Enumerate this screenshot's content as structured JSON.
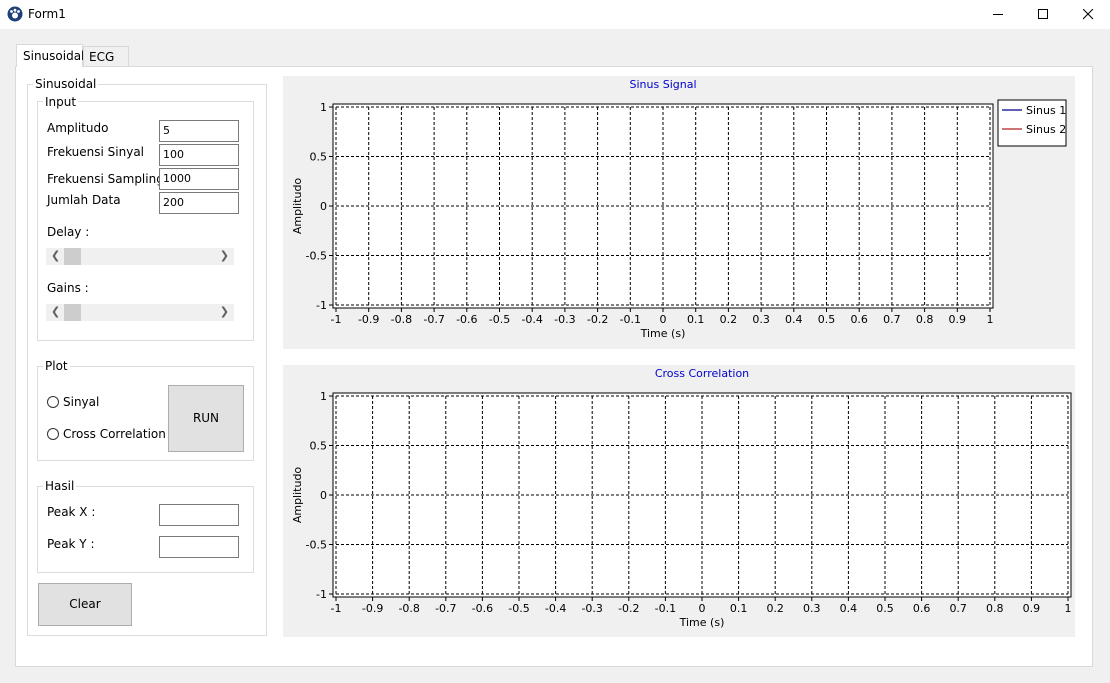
{
  "window": {
    "title": "Form1",
    "minimize_icon": "minimize-icon",
    "maximize_icon": "maximize-icon",
    "close_icon": "close-icon"
  },
  "tabs": [
    {
      "label": "Sinusoidal",
      "active": true
    },
    {
      "label": "ECG",
      "active": false
    }
  ],
  "sinusoidal_group": {
    "label": "Sinusoidal"
  },
  "input": {
    "label": "Input",
    "amplitudo_label": "Amplitudo",
    "amplitudo_value": "5",
    "frek_sinyal_label": "Frekuensi Sinyal",
    "frek_sinyal_value": "100",
    "frek_sampling_label": "Frekuensi Sampling",
    "frek_sampling_value": "1000",
    "jumlah_data_label": "Jumlah Data",
    "jumlah_data_value": "200",
    "delay_label": "Delay :",
    "gains_label": "Gains :"
  },
  "plot": {
    "label": "Plot",
    "sinyal_label": "Sinyal",
    "cross_label": "Cross Correlation",
    "run_label": "RUN"
  },
  "hasil": {
    "label": "Hasil",
    "peak_x_label": "Peak X :",
    "peak_y_label": "Peak Y :",
    "peak_x_value": "",
    "peak_y_value": ""
  },
  "clear_label": "Clear",
  "chart_data": [
    {
      "type": "line",
      "title": "Sinus Signal",
      "xlabel": "Time (s)",
      "ylabel": "Amplitudo",
      "xlim": [
        -1,
        1
      ],
      "ylim": [
        -1,
        1
      ],
      "x_ticks": [
        "-1",
        "-0.9",
        "-0.8",
        "-0.7",
        "-0.6",
        "-0.5",
        "-0.4",
        "-0.3",
        "-0.2",
        "-0.1",
        "0",
        "0.1",
        "0.2",
        "0.3",
        "0.4",
        "0.5",
        "0.6",
        "0.7",
        "0.8",
        "0.9",
        "1"
      ],
      "y_ticks": [
        "1",
        "0.5",
        "0",
        "-0.5",
        "-1"
      ],
      "grid": true,
      "legend_placement": "right",
      "series": [
        {
          "name": "Sinus 1",
          "color": "#00008b",
          "values": []
        },
        {
          "name": "Sinus 2",
          "color": "#b22222",
          "values": []
        }
      ]
    },
    {
      "type": "line",
      "title": "Cross Correlation",
      "xlabel": "Time (s)",
      "ylabel": "Amplitudo",
      "xlim": [
        -1,
        1
      ],
      "ylim": [
        -1,
        1
      ],
      "x_ticks": [
        "-1",
        "-0.9",
        "-0.8",
        "-0.7",
        "-0.6",
        "-0.5",
        "-0.4",
        "-0.3",
        "-0.2",
        "-0.1",
        "0",
        "0.1",
        "0.2",
        "0.3",
        "0.4",
        "0.5",
        "0.6",
        "0.7",
        "0.8",
        "0.9",
        "1"
      ],
      "y_ticks": [
        "1",
        "0.5",
        "0",
        "-0.5",
        "-1"
      ],
      "grid": true,
      "series": []
    }
  ],
  "colors": {
    "title_blue": "#0000cd",
    "panel_bg": "#f0f0f0"
  }
}
